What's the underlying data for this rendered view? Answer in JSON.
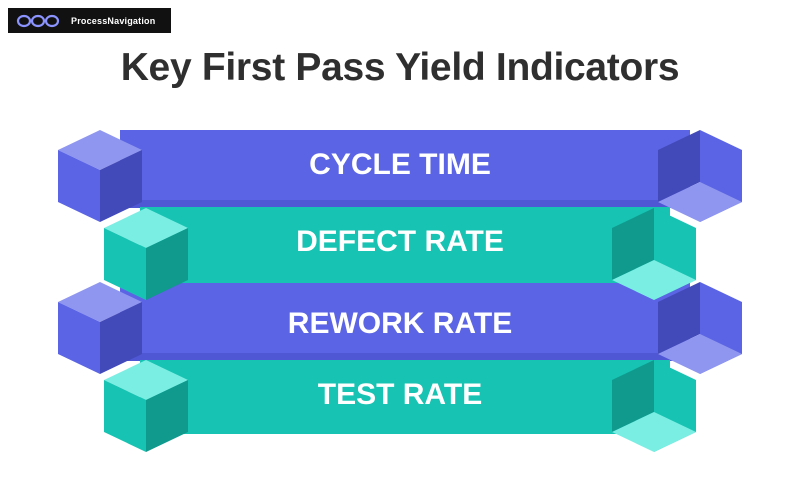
{
  "logo": {
    "text": "ProcessNavigation",
    "icon": "triple-ring-logo-icon"
  },
  "title": "Key First Pass Yield Indicators",
  "colors": {
    "purple": "#5b64e4",
    "purple_light": "#8f96f0",
    "purple_dark": "#4249b8",
    "teal": "#17c3b2",
    "teal_light": "#7beee4",
    "teal_dark": "#0f9a8d",
    "title": "#2f2f2f"
  },
  "indicators": [
    {
      "label": "CYCLE TIME",
      "color": "purple"
    },
    {
      "label": "DEFECT RATE",
      "color": "teal"
    },
    {
      "label": "REWORK RATE",
      "color": "purple"
    },
    {
      "label": "TEST RATE",
      "color": "teal"
    }
  ]
}
